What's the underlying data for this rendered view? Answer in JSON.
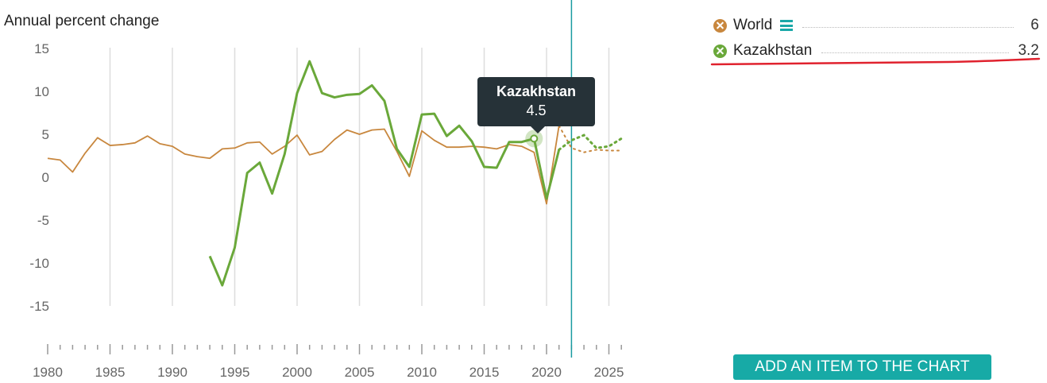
{
  "chart_data": {
    "type": "line",
    "ylabel": "Annual percent change",
    "ylim": [
      -15,
      15
    ],
    "xlim": [
      1980,
      2026
    ],
    "y_ticks": [
      "15",
      "10",
      "5",
      "0",
      "-5",
      "-10",
      "-15"
    ],
    "x_ticks": [
      "1980",
      "1985",
      "1990",
      "1995",
      "2000",
      "2005",
      "2010",
      "2015",
      "2020",
      "2025"
    ],
    "grid": "vertical",
    "current_year": 2022,
    "series": [
      {
        "name": "World",
        "color": "#c8873e",
        "x": [
          1980,
          1981,
          1982,
          1983,
          1984,
          1985,
          1986,
          1987,
          1988,
          1989,
          1990,
          1991,
          1992,
          1993,
          1994,
          1995,
          1996,
          1997,
          1998,
          1999,
          2000,
          2001,
          2002,
          2003,
          2004,
          2005,
          2006,
          2007,
          2008,
          2009,
          2010,
          2011,
          2012,
          2013,
          2014,
          2015,
          2016,
          2017,
          2018,
          2019,
          2020,
          2021
        ],
        "values": [
          2.2,
          2.0,
          0.6,
          2.8,
          4.6,
          3.7,
          3.8,
          4.0,
          4.8,
          3.9,
          3.6,
          2.7,
          2.4,
          2.2,
          3.3,
          3.4,
          4.0,
          4.1,
          2.7,
          3.6,
          4.9,
          2.6,
          3.0,
          4.4,
          5.5,
          5.0,
          5.5,
          5.6,
          3.0,
          0.1,
          5.4,
          4.3,
          3.5,
          3.5,
          3.6,
          3.5,
          3.3,
          3.8,
          3.6,
          2.9,
          -3.1,
          6.0
        ],
        "forecast_x": [
          2021,
          2022,
          2023,
          2024,
          2025,
          2026
        ],
        "forecast": [
          6.0,
          3.4,
          2.9,
          3.2,
          3.1,
          3.1
        ],
        "legend_value": "6"
      },
      {
        "name": "Kazakhstan",
        "color": "#6aa83a",
        "x": [
          1993,
          1994,
          1995,
          1996,
          1997,
          1998,
          1999,
          2000,
          2001,
          2002,
          2003,
          2004,
          2005,
          2006,
          2007,
          2008,
          2009,
          2010,
          2011,
          2012,
          2013,
          2014,
          2015,
          2016,
          2017,
          2018,
          2019,
          2020,
          2021
        ],
        "values": [
          -9.2,
          -12.6,
          -8.2,
          0.5,
          1.7,
          -1.9,
          2.7,
          9.8,
          13.5,
          9.8,
          9.3,
          9.6,
          9.7,
          10.7,
          8.9,
          3.3,
          1.2,
          7.3,
          7.4,
          4.8,
          6.0,
          4.2,
          1.2,
          1.1,
          4.1,
          4.1,
          4.5,
          -2.5,
          3.2
        ],
        "forecast_x": [
          2021,
          2022,
          2023,
          2024,
          2025,
          2026
        ],
        "forecast": [
          3.2,
          4.3,
          4.9,
          3.4,
          3.6,
          4.5
        ],
        "legend_value": "3.2"
      }
    ],
    "tooltip": {
      "x": 2019,
      "series": "Kazakhstan",
      "value": "4.5"
    }
  },
  "add_button_label": "ADD AN ITEM TO THE CHART",
  "accent_color": "#17aaa6",
  "menu_icon": "hamburger-icon"
}
